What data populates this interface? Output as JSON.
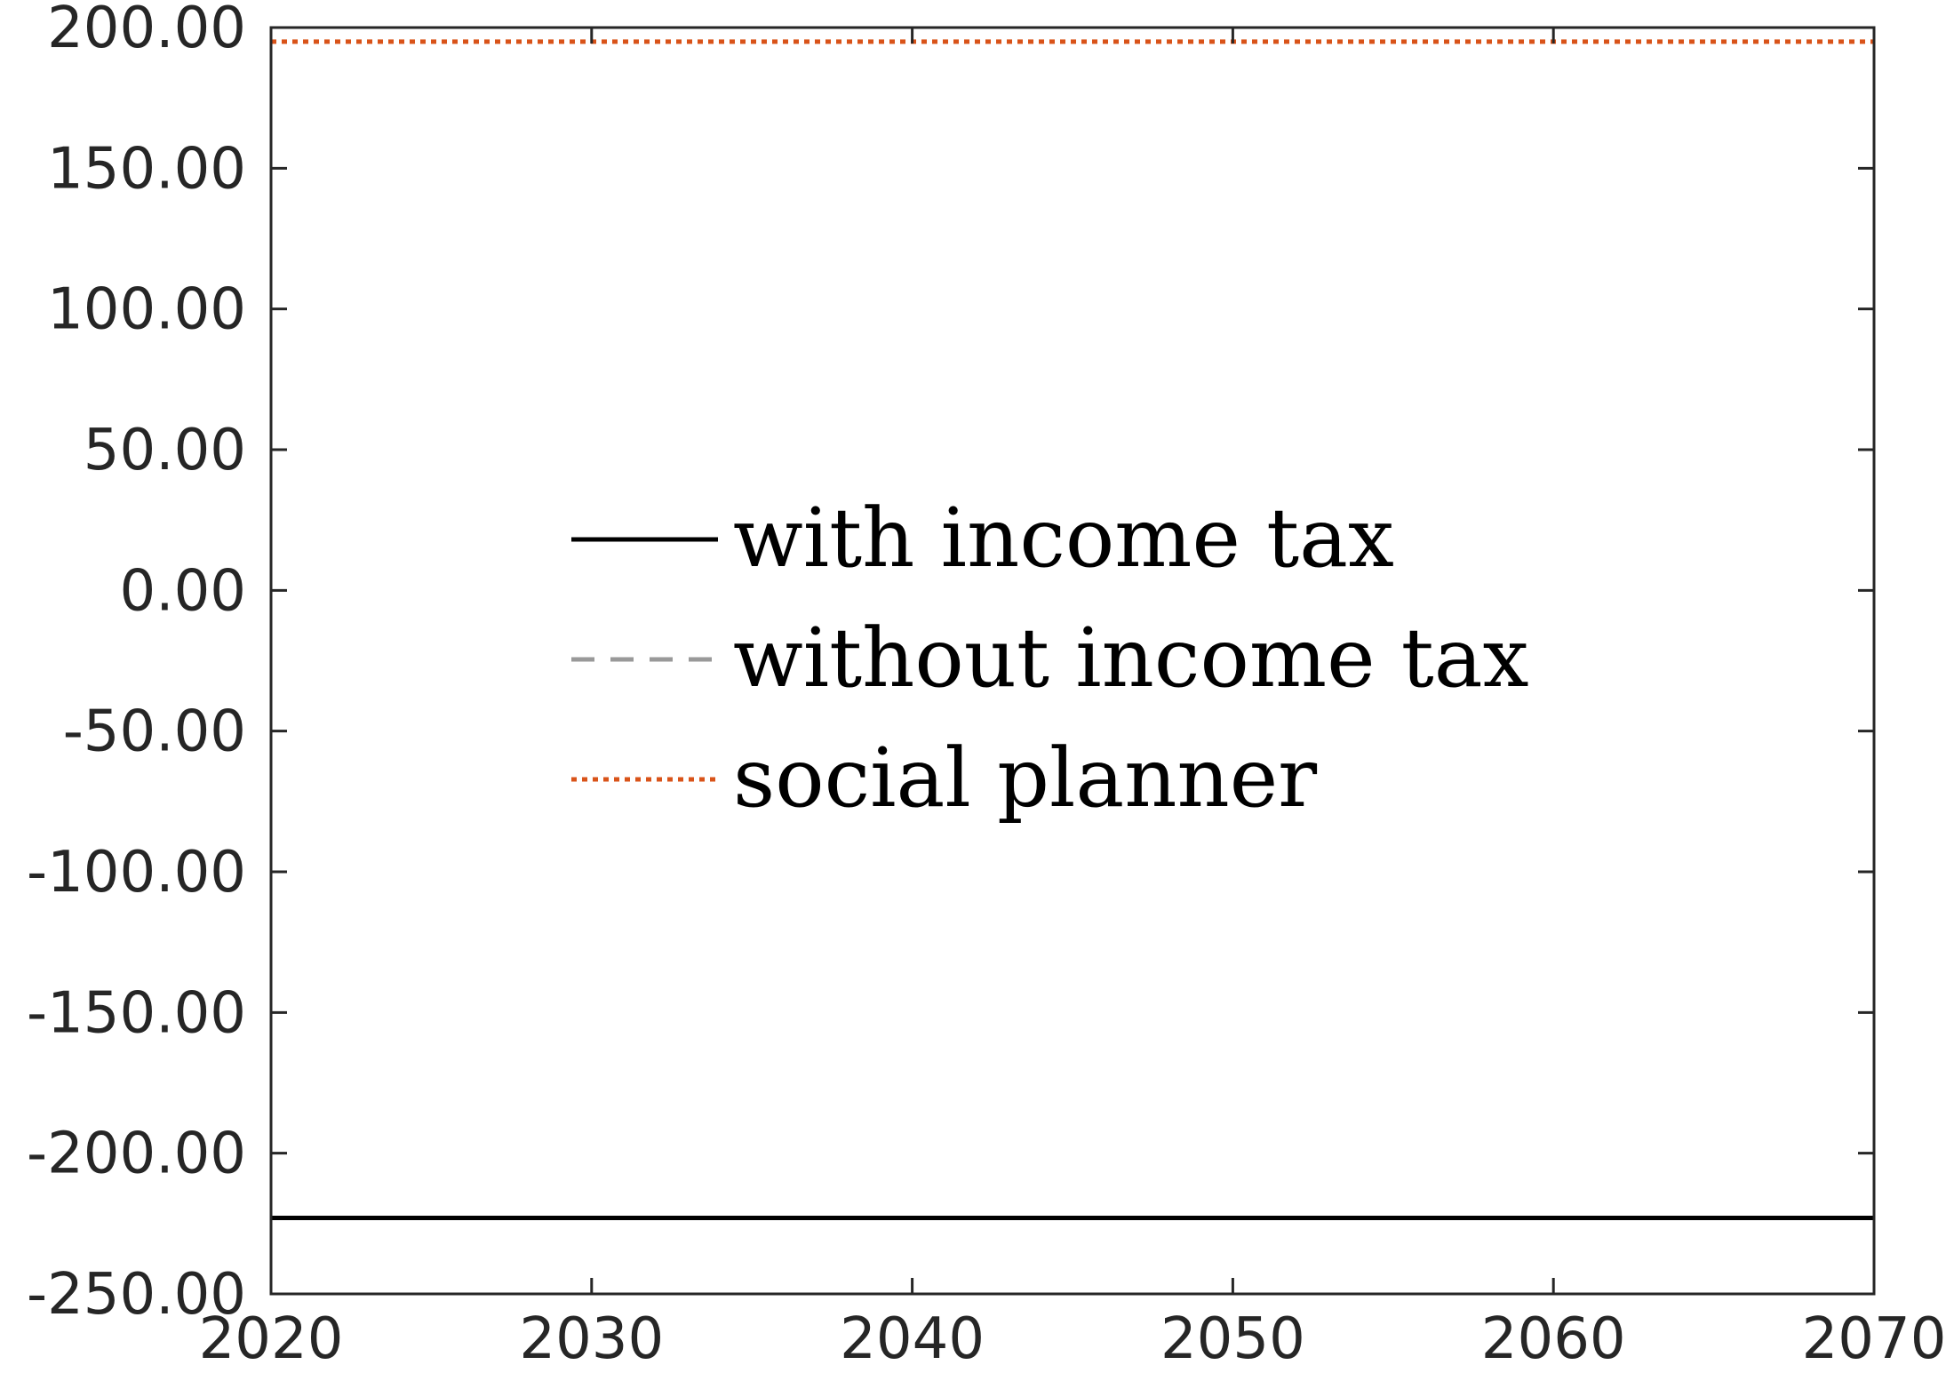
{
  "chart_data": {
    "type": "line",
    "title": "",
    "xlabel": "",
    "ylabel": "",
    "xlim": [
      2020,
      2070
    ],
    "ylim": [
      -250,
      200
    ],
    "x_ticks": [
      2020,
      2030,
      2040,
      2050,
      2060,
      2070
    ],
    "x_tick_labels": [
      "2020",
      "2030",
      "2040",
      "2050",
      "2060",
      "2070"
    ],
    "y_ticks": [
      -250,
      -200,
      -150,
      -100,
      -50,
      0,
      50,
      100,
      150,
      200
    ],
    "y_tick_labels": [
      "-250.00",
      "-200.00",
      "-150.00",
      "-100.00",
      "-50.00",
      "0.00",
      "50.00",
      "100.00",
      "150.00",
      "200.00"
    ],
    "grid": false,
    "legend": {
      "position": "center-left",
      "box": false
    },
    "series": [
      {
        "name": "with income tax",
        "style": "solid",
        "color": "#000000",
        "x": [
          2020,
          2070
        ],
        "y": [
          -223,
          -223
        ]
      },
      {
        "name": "without income tax",
        "style": "dashed",
        "color": "#999999",
        "x": [
          2020,
          2070
        ],
        "y": [
          -223,
          -223
        ]
      },
      {
        "name": "social planner",
        "style": "dotted",
        "color": "#D95319",
        "x": [
          2020,
          2070
        ],
        "y": [
          195,
          195
        ]
      }
    ]
  }
}
